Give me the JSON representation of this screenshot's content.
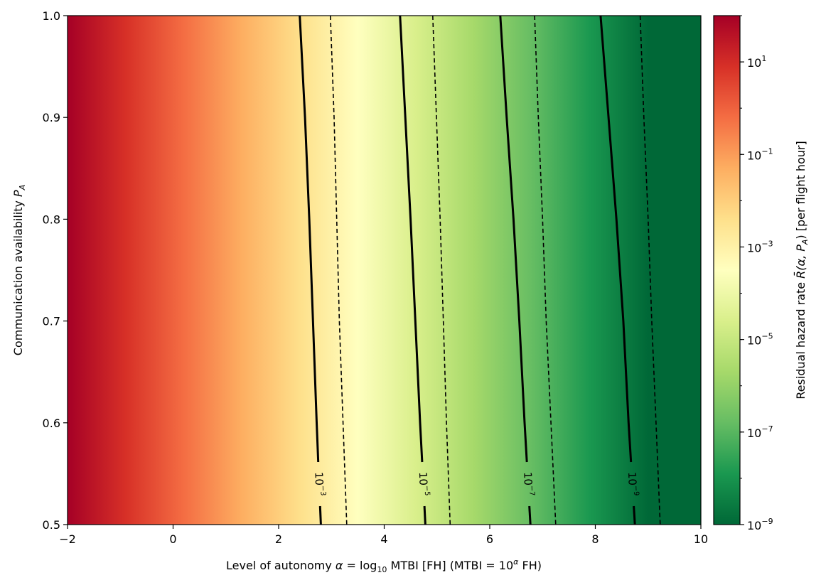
{
  "chart_data": {
    "type": "heatmap",
    "title": "",
    "xlabel_parts": {
      "pre": "Level of autonomy  ",
      "alpha": "α",
      "eq": " = log",
      "sub": "10",
      "mid": " MTBI [FH]    (MTBI = 10",
      "sup": "α",
      "post": " FH)"
    },
    "ylabel_parts": {
      "pre": "Communication availability  ",
      "P": "P",
      "sub": "A"
    },
    "colorbar_label_parts": {
      "pre": "Residual hazard rate  ",
      "expr": "R̄(α, P",
      "sub": "A",
      "post": ")  [per flight hour]"
    },
    "x_range": [
      -2,
      10
    ],
    "y_range": [
      0.5,
      1.0
    ],
    "x_ticks": [
      "−2",
      "0",
      "2",
      "4",
      "6",
      "8",
      "10"
    ],
    "x_tick_values": [
      -2,
      0,
      2,
      4,
      6,
      8,
      10
    ],
    "y_ticks": [
      "0.5",
      "0.6",
      "0.7",
      "0.8",
      "0.9",
      "1.0"
    ],
    "y_tick_values": [
      0.5,
      0.6,
      0.7,
      0.8,
      0.9,
      1.0
    ],
    "color_scale": "log",
    "color_range_log10": [
      -9,
      2
    ],
    "colormap": "RdYlGn_r",
    "colorbar_ticks": [
      {
        "exp": -9,
        "base": "10",
        "sup": "−9"
      },
      {
        "exp": -7,
        "base": "10",
        "sup": "−7"
      },
      {
        "exp": -5,
        "base": "10",
        "sup": "−5"
      },
      {
        "exp": -3,
        "base": "10",
        "sup": "−3"
      },
      {
        "exp": -1,
        "base": "10",
        "sup": "−1"
      },
      {
        "exp": 1,
        "base": "10",
        "sup": "1"
      }
    ],
    "field_model": {
      "log10R_at_x_minus2": 2,
      "slope_per_alpha": -1
    },
    "contours_solid": [
      {
        "label_base": "10",
        "label_sup": "−3",
        "points": [
          [
            2.4,
            1.0
          ],
          [
            2.5,
            0.9
          ],
          [
            2.58,
            0.8
          ],
          [
            2.65,
            0.7
          ],
          [
            2.72,
            0.6
          ],
          [
            2.8,
            0.5
          ]
        ]
      },
      {
        "label_base": "10",
        "label_sup": "−5",
        "points": [
          [
            4.3,
            1.0
          ],
          [
            4.4,
            0.9
          ],
          [
            4.5,
            0.8
          ],
          [
            4.59,
            0.7
          ],
          [
            4.68,
            0.6
          ],
          [
            4.78,
            0.5
          ]
        ]
      },
      {
        "label_base": "10",
        "label_sup": "−7",
        "points": [
          [
            6.2,
            1.0
          ],
          [
            6.32,
            0.9
          ],
          [
            6.45,
            0.8
          ],
          [
            6.56,
            0.7
          ],
          [
            6.66,
            0.6
          ],
          [
            6.77,
            0.5
          ]
        ]
      },
      {
        "label_base": "10",
        "label_sup": "−9",
        "points": [
          [
            8.1,
            1.0
          ],
          [
            8.25,
            0.9
          ],
          [
            8.4,
            0.8
          ],
          [
            8.53,
            0.7
          ],
          [
            8.63,
            0.6
          ],
          [
            8.75,
            0.5
          ]
        ]
      }
    ],
    "contours_dashed": [
      {
        "points": [
          [
            2.98,
            1.0
          ],
          [
            3.05,
            0.9
          ],
          [
            3.1,
            0.8
          ],
          [
            3.15,
            0.7
          ],
          [
            3.22,
            0.6
          ],
          [
            3.29,
            0.5
          ]
        ]
      },
      {
        "points": [
          [
            4.92,
            1.0
          ],
          [
            4.99,
            0.9
          ],
          [
            5.06,
            0.8
          ],
          [
            5.12,
            0.7
          ],
          [
            5.18,
            0.6
          ],
          [
            5.25,
            0.5
          ]
        ]
      },
      {
        "points": [
          [
            6.85,
            1.0
          ],
          [
            6.92,
            0.9
          ],
          [
            7.0,
            0.8
          ],
          [
            7.07,
            0.7
          ],
          [
            7.16,
            0.6
          ],
          [
            7.25,
            0.5
          ]
        ]
      },
      {
        "points": [
          [
            8.85,
            1.0
          ],
          [
            8.92,
            0.9
          ],
          [
            9.0,
            0.8
          ],
          [
            9.07,
            0.7
          ],
          [
            9.15,
            0.6
          ],
          [
            9.23,
            0.5
          ]
        ]
      }
    ]
  }
}
